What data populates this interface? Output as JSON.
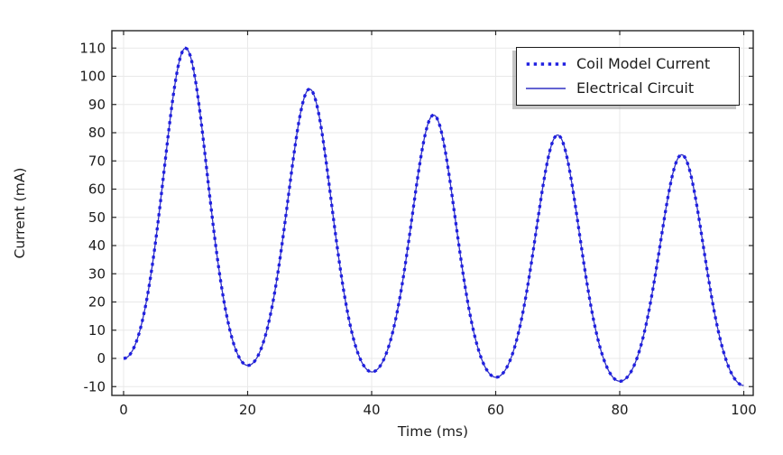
{
  "chart_data": {
    "type": "line",
    "title": "",
    "xlabel": "Time (ms)",
    "ylabel": "Current (mA)",
    "xlim": [
      -1.9,
      101.5
    ],
    "ylim": [
      -13.1,
      116.2
    ],
    "x_ticks": [
      0,
      20,
      40,
      60,
      80,
      100
    ],
    "y_ticks": [
      -10,
      0,
      10,
      20,
      30,
      40,
      50,
      60,
      70,
      80,
      90,
      100,
      110
    ],
    "grid": true,
    "legend_position": "top-right-inside",
    "series": [
      {
        "name": "Coil Model Current",
        "style": "dotted",
        "color": "#1f1fe0"
      },
      {
        "name": "Electrical Circuit",
        "style": "solid",
        "color": "#3030c4",
        "note": "coincides with Coil Model Current"
      }
    ],
    "waveform": {
      "description": "Decaying periodic pulses, both series overlap",
      "period_ms": 20,
      "pulse_sharpness_k": 0.6,
      "start_point": {
        "t": 0,
        "y": 0
      },
      "peaks": [
        {
          "t": 10,
          "y": 110
        },
        {
          "t": 30,
          "y": 95.5
        },
        {
          "t": 50,
          "y": 86.3
        },
        {
          "t": 70,
          "y": 79.2
        },
        {
          "t": 90,
          "y": 72.2
        }
      ],
      "troughs": [
        {
          "t": 0,
          "y": 0
        },
        {
          "t": 20,
          "y": -2.5
        },
        {
          "t": 40,
          "y": -4.8
        },
        {
          "t": 60,
          "y": -6.7
        },
        {
          "t": 80,
          "y": -8.1
        },
        {
          "t": 100,
          "y": -9.6
        }
      ]
    }
  },
  "colors": {
    "grid": "#e9e9e9",
    "axis_frame": "#262626",
    "text": "#1c1c1c",
    "legend_shadow": "#969696"
  }
}
